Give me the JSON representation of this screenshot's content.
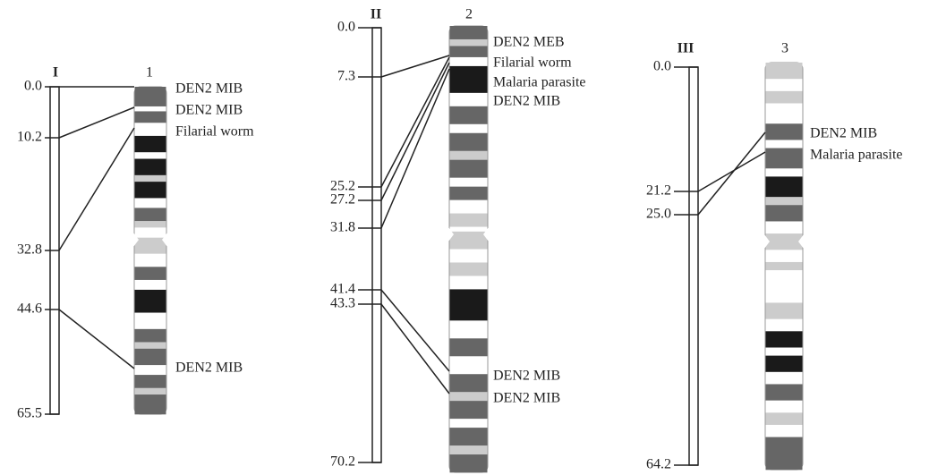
{
  "maps": [
    {
      "name": "I",
      "chromosome": "1",
      "markers": [
        "0.0",
        "10.2",
        "32.8",
        "44.6",
        "65.5"
      ],
      "genes": [
        "DEN2 MIB",
        "DEN2 MIB",
        "Filarial worm",
        "DEN2 MIB"
      ]
    },
    {
      "name": "II",
      "chromosome": "2",
      "markers": [
        "0.0",
        "7.3",
        "25.2",
        "27.2",
        "31.8",
        "41.4",
        "43.3",
        "70.2"
      ],
      "genes": [
        "DEN2 MEB",
        "Filarial worm",
        "Malaria parasite",
        "DEN2 MIB",
        "DEN2 MIB",
        "DEN2 MIB"
      ]
    },
    {
      "name": "III",
      "chromosome": "3",
      "markers": [
        "0.0",
        "21.2",
        "25.0",
        "64.2"
      ],
      "genes": [
        "DEN2 MIB",
        "Malaria parasite"
      ]
    }
  ]
}
